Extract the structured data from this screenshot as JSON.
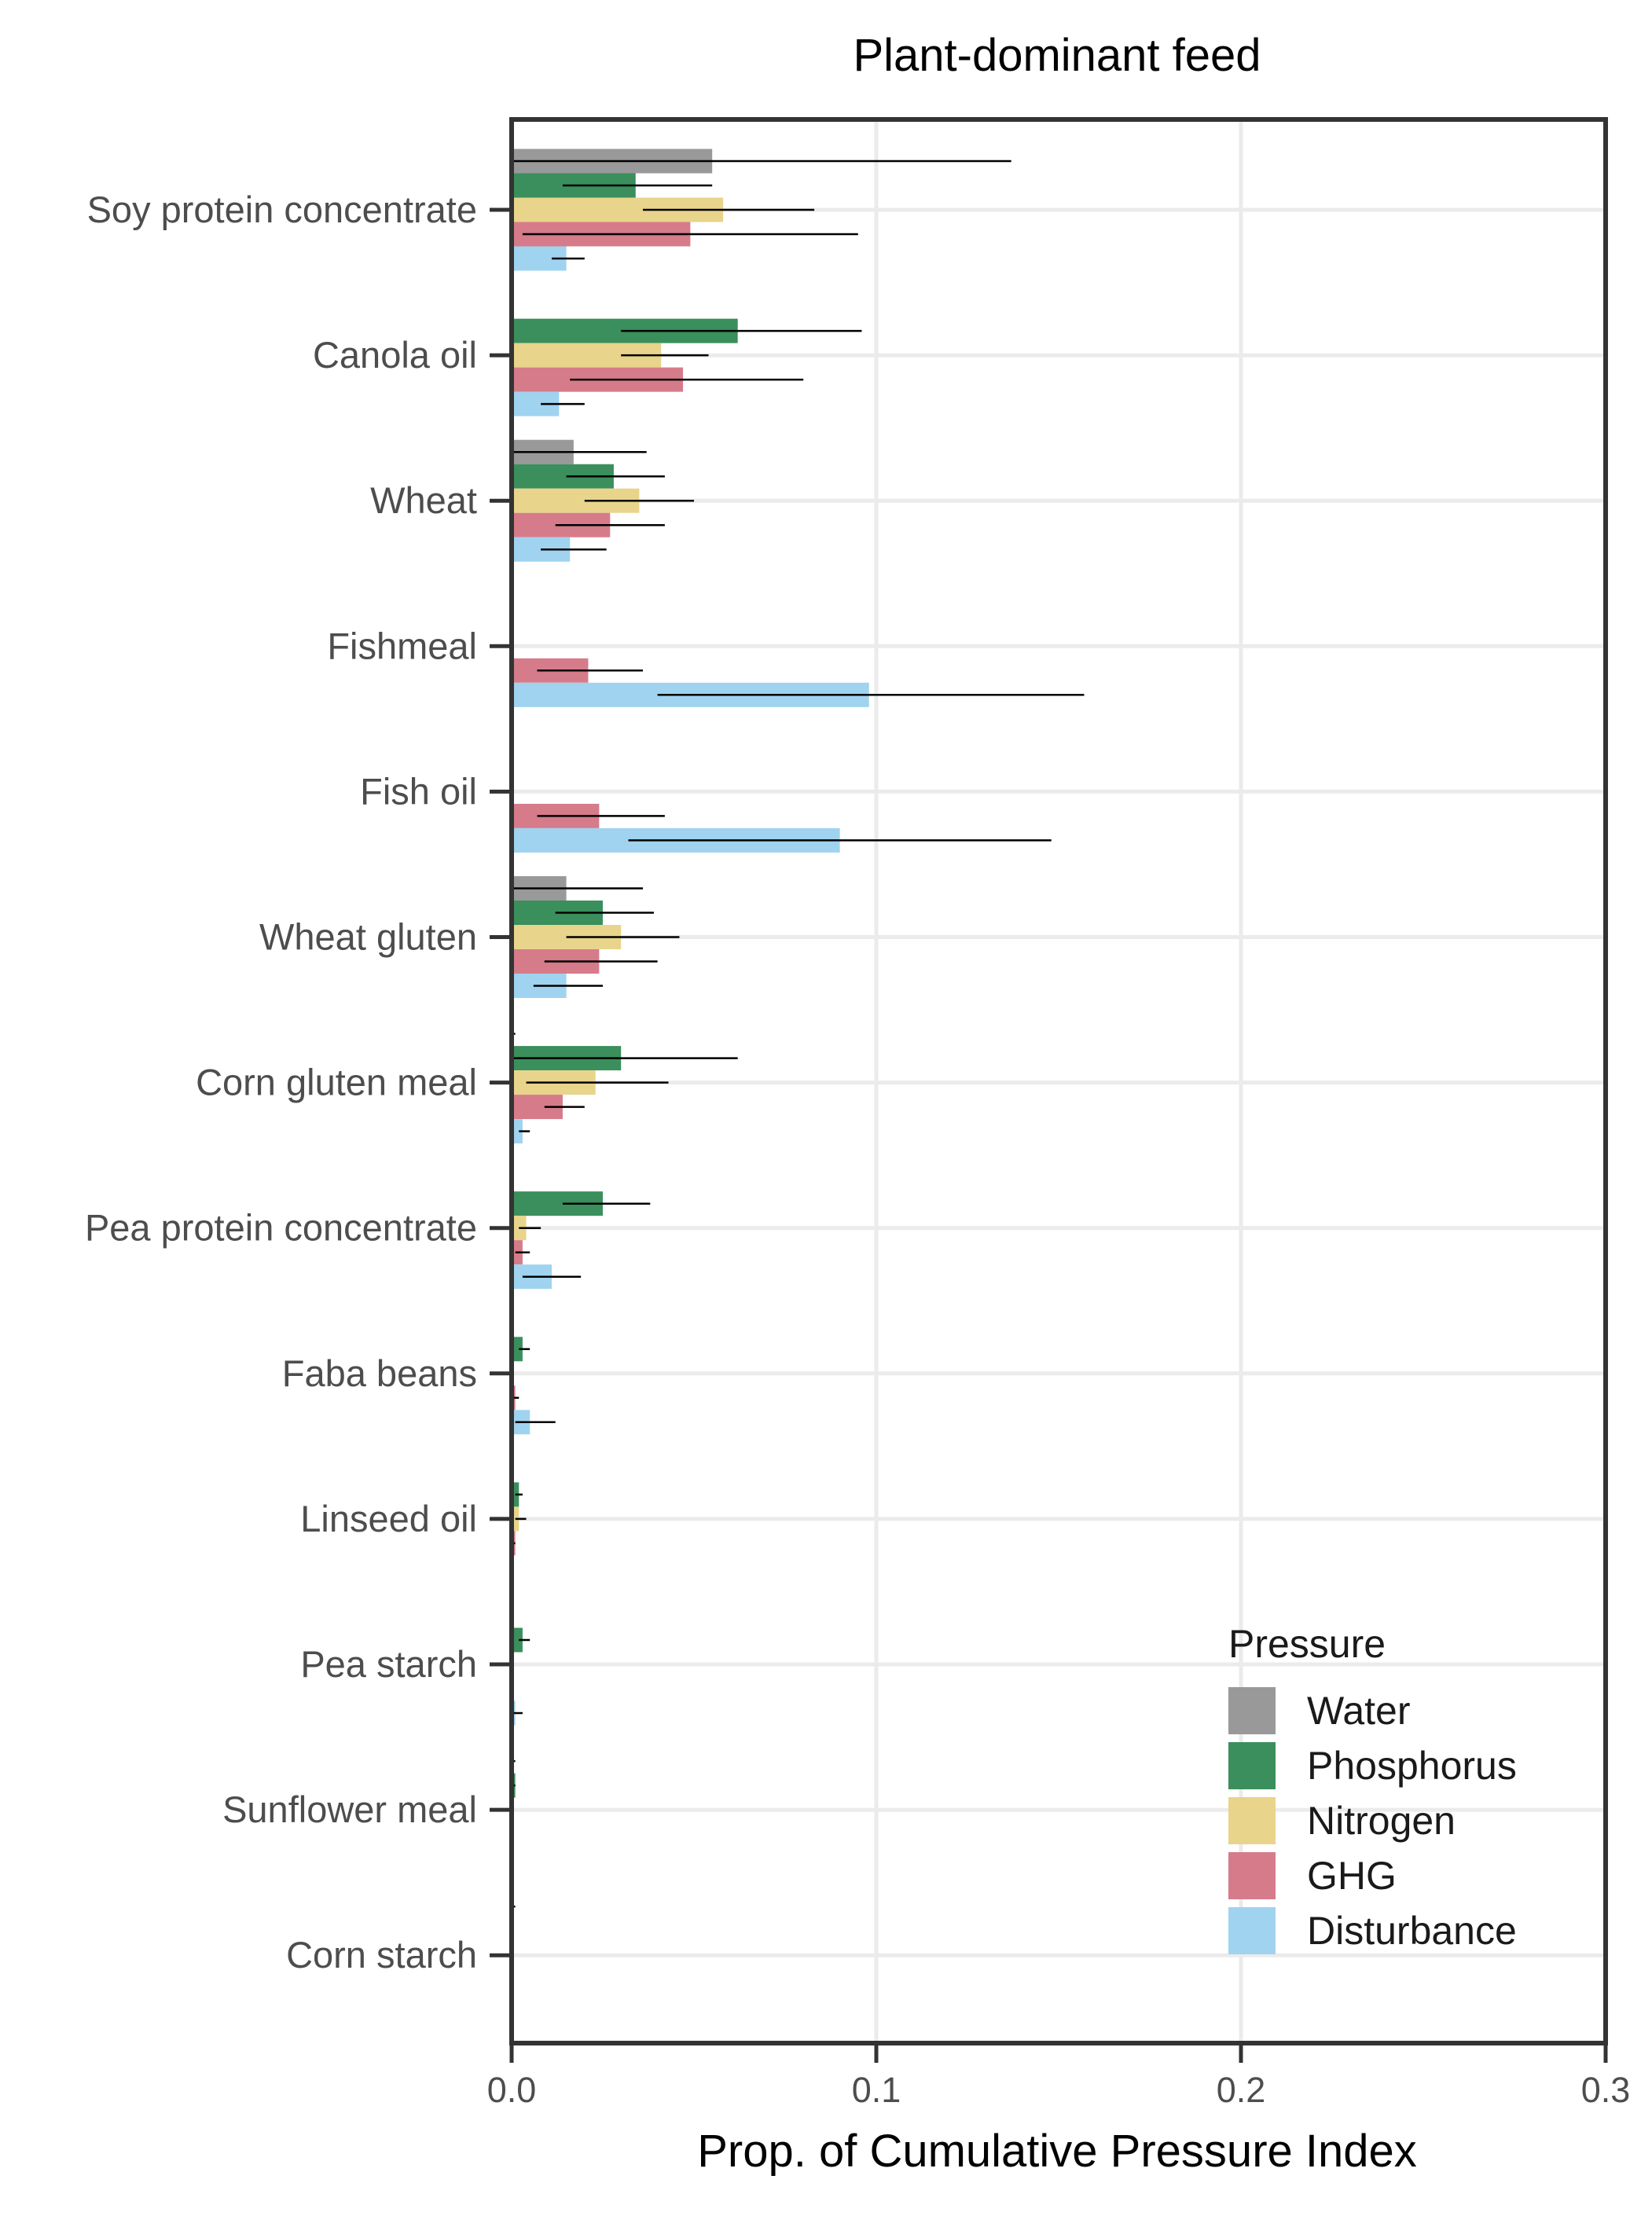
{
  "chart_data": {
    "type": "bar",
    "orientation": "horizontal",
    "title": "Plant-dominant feed",
    "xlabel": "Prop. of Cumulative Pressure Index",
    "ylabel": "",
    "xlim": [
      0,
      0.3
    ],
    "xticks": [
      0,
      0.1,
      0.2,
      0.3
    ],
    "xtick_labels": [
      "0.0",
      "0.1",
      "0.2",
      "0.3"
    ],
    "grid": true,
    "legend_title": "Pressure",
    "legend_position": "bottom-right",
    "categories": [
      "Soy protein concentrate",
      "Canola oil",
      "Wheat",
      "Fishmeal",
      "Fish oil",
      "Wheat gluten",
      "Corn gluten meal",
      "Pea protein concentrate",
      "Faba beans",
      "Linseed oil",
      "Pea starch",
      "Sunflower meal",
      "Corn starch"
    ],
    "series": [
      {
        "name": "Water",
        "color": "#999999",
        "values": [
          0.055,
          0,
          0.017,
          0,
          0,
          0.015,
          0,
          0,
          0,
          0,
          0,
          0,
          0
        ],
        "err_low": [
          0,
          0,
          0,
          0,
          0,
          0,
          0,
          0,
          0,
          0,
          0,
          0,
          0
        ],
        "err_high": [
          0.137,
          0,
          0.037,
          0,
          0,
          0.036,
          0.001,
          0,
          0,
          0,
          0,
          0.001,
          0.001
        ]
      },
      {
        "name": "Phosphorus",
        "color": "#3a8f5c",
        "values": [
          0.034,
          0.062,
          0.028,
          0,
          0,
          0.025,
          0.03,
          0.025,
          0.003,
          0.002,
          0.003,
          0.001,
          0
        ],
        "err_low": [
          0.014,
          0.03,
          0.015,
          0,
          0,
          0.012,
          0,
          0.014,
          0.002,
          0.001,
          0.002,
          0,
          0
        ],
        "err_high": [
          0.055,
          0.096,
          0.042,
          0,
          0,
          0.039,
          0.062,
          0.038,
          0.005,
          0.003,
          0.005,
          0.001,
          0
        ]
      },
      {
        "name": "Nitrogen",
        "color": "#e8d48b",
        "values": [
          0.058,
          0.041,
          0.035,
          0,
          0,
          0.03,
          0.023,
          0.004,
          0,
          0.002,
          0,
          0,
          0
        ],
        "err_low": [
          0.036,
          0.03,
          0.02,
          0,
          0,
          0.015,
          0.004,
          0.002,
          0,
          0.001,
          0,
          0,
          0
        ],
        "err_high": [
          0.083,
          0.054,
          0.05,
          0,
          0,
          0.046,
          0.043,
          0.008,
          0,
          0.004,
          0,
          0,
          0
        ]
      },
      {
        "name": "GHG",
        "color": "#d67b8a",
        "values": [
          0.049,
          0.047,
          0.027,
          0.021,
          0.024,
          0.024,
          0.014,
          0.003,
          0.001,
          0.001,
          0,
          0,
          0
        ],
        "err_low": [
          0.003,
          0.016,
          0.012,
          0.007,
          0.007,
          0.009,
          0.009,
          0.001,
          0,
          0,
          0,
          0,
          0
        ],
        "err_high": [
          0.095,
          0.08,
          0.042,
          0.036,
          0.042,
          0.04,
          0.02,
          0.005,
          0.002,
          0.001,
          0,
          0,
          0
        ]
      },
      {
        "name": "Disturbance",
        "color": "#9fd3f0",
        "values": [
          0.015,
          0.013,
          0.016,
          0.098,
          0.09,
          0.015,
          0.003,
          0.011,
          0.005,
          0,
          0.001,
          0,
          0
        ],
        "err_low": [
          0.011,
          0.008,
          0.008,
          0.04,
          0.032,
          0.006,
          0.002,
          0.003,
          0.001,
          0,
          0,
          0,
          0
        ],
        "err_high": [
          0.02,
          0.02,
          0.026,
          0.157,
          0.148,
          0.025,
          0.005,
          0.019,
          0.012,
          0,
          0.003,
          0,
          0
        ]
      }
    ]
  }
}
